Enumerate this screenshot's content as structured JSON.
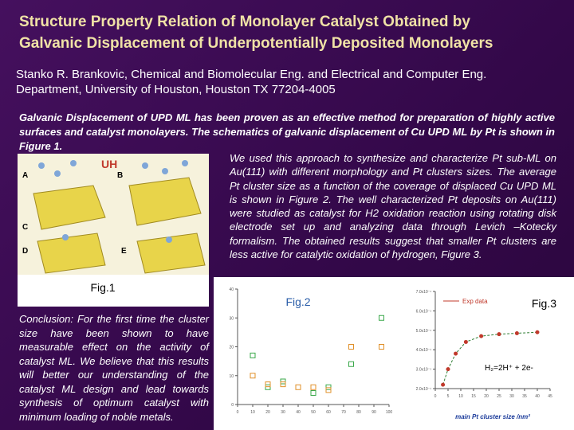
{
  "title": [
    "Structure Property Relation of Monolayer Catalyst Obtained by",
    "Galvanic Displacement of Underpotentially Deposited Monolayers"
  ],
  "authors": [
    "Stanko R. Brankovic, Chemical and Biomolecular Eng. and Electrical and Computer Eng.",
    "Department, University of Houston, Houston TX 77204-4005"
  ],
  "intro": "Galvanic Displacement of UPD ML has been proven as an effective method for preparation of highly active surfaces and catalyst monolayers. The schematics of galvanic displacement of Cu UPD ML by Pt is shown in Figure 1.",
  "approach": "We used this approach to synthesize and characterize Pt sub-ML on Au(111) with different morphology and Pt clusters sizes. The average Pt cluster size as a function of the coverage of displaced Cu UPD ML is shown in Figure 2. The well characterized Pt deposits on Au(111) were studied as catalyst for H2 oxidation reaction using rotating disk electrode set up and analyzing data through Levich –Kotecky formalism. The obtained results suggest that smaller Pt clusters are less active for catalytic oxidation of hydrogen, Figure 3.",
  "conclusion": "Conclusion: For the first time the cluster size have been shown to have measurable effect on the activity of catalyst ML. We believe that this results will better our understanding of the catalyst ML design and lead towards synthesis of optimum catalyst with minimum loading of noble metals.",
  "figure1": {
    "label": "Fig.1",
    "panels": [
      "A",
      "B",
      "C",
      "D",
      "E"
    ]
  },
  "figure2": {
    "label": "Fig.2",
    "xlim": [
      0,
      100
    ],
    "ylim": [
      0,
      40
    ],
    "xticks": [
      0,
      10,
      20,
      30,
      40,
      50,
      60,
      70,
      80,
      90,
      100
    ],
    "yticks": [
      0,
      10,
      20,
      30,
      40
    ],
    "series": [
      {
        "color": "#3aa84a",
        "x": [
          10,
          20,
          30,
          50,
          60,
          75,
          95
        ],
        "values": [
          17,
          6,
          8,
          4,
          6,
          14,
          30
        ]
      },
      {
        "color": "#e0902a",
        "x": [
          10,
          20,
          30,
          40,
          50,
          60,
          75,
          95
        ],
        "values": [
          10,
          7,
          7,
          6,
          6,
          5,
          20,
          20
        ]
      }
    ]
  },
  "figure3": {
    "label": "Fig.3",
    "legend": "Exp data",
    "equation": "H₂=2H⁺ + 2e-",
    "x_label": "main Pt cluster size /nm²",
    "color": "#c0392b",
    "xlim": [
      0,
      45
    ],
    "ylim": [
      2,
      7
    ],
    "xticks": [
      0,
      5,
      10,
      15,
      20,
      25,
      30,
      35,
      40,
      45
    ],
    "yticks": [
      {
        "value": 2,
        "label": "2.0x10⁻¹"
      },
      {
        "value": 3,
        "label": "3.0x10⁻¹"
      },
      {
        "value": 4,
        "label": "4.0x10⁻¹"
      },
      {
        "value": 5,
        "label": "5.0x10⁻¹"
      },
      {
        "value": 6,
        "label": "6.0x10⁻¹"
      },
      {
        "value": 7,
        "label": "7.0x10⁻¹"
      }
    ],
    "x": [
      3,
      5,
      8,
      12,
      18,
      25,
      32,
      40
    ],
    "values": [
      2.2,
      3.0,
      3.8,
      4.4,
      4.7,
      4.8,
      4.85,
      4.9
    ]
  }
}
